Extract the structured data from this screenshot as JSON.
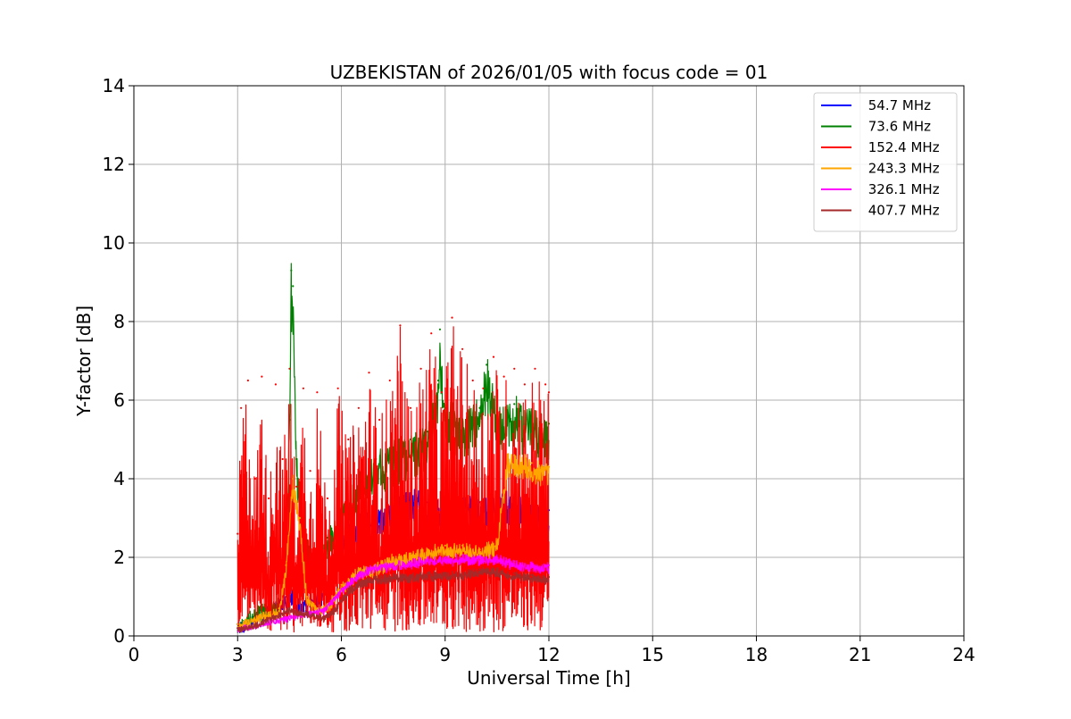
{
  "chart_data": {
    "type": "line",
    "title": "UZBEKISTAN of 2026/01/05 with focus code = 01",
    "xlabel": "Universal Time [h]",
    "ylabel": "Y-factor [dB]",
    "xlim": [
      0,
      24
    ],
    "ylim": [
      0,
      14
    ],
    "xticks": [
      0,
      3,
      6,
      9,
      12,
      15,
      18,
      21,
      24
    ],
    "yticks": [
      0,
      2,
      4,
      6,
      8,
      10,
      12,
      14
    ],
    "grid": true,
    "legend_position": "top-right",
    "series": [
      {
        "name": " 54.7 MHz",
        "color": "#0000ff",
        "x": [
          3.0,
          3.3,
          3.6,
          3.9,
          4.2,
          4.4,
          4.6,
          4.8,
          5.0,
          5.5,
          6.0,
          6.5,
          7.0,
          7.5,
          8.0,
          8.5,
          9.0,
          9.5,
          10.0,
          10.5,
          11.0,
          11.5,
          12.0
        ],
        "values": [
          0.3,
          0.4,
          0.6,
          0.7,
          0.9,
          1.0,
          1.1,
          0.8,
          0.9,
          1.2,
          2.6,
          3.0,
          3.2,
          3.3,
          3.6,
          3.4,
          3.3,
          3.5,
          3.4,
          3.6,
          3.5,
          3.4,
          3.2
        ]
      },
      {
        "name": " 73.6 MHz",
        "color": "#008000",
        "x": [
          3.0,
          3.3,
          3.6,
          3.9,
          4.2,
          4.4,
          4.5,
          4.55,
          4.6,
          4.7,
          4.9,
          5.2,
          5.6,
          6.0,
          6.5,
          7.0,
          7.5,
          8.0,
          8.5,
          8.8,
          8.85,
          9.0,
          9.5,
          10.0,
          10.2,
          10.5,
          11.0,
          11.5,
          12.0
        ],
        "values": [
          0.3,
          0.5,
          0.7,
          0.8,
          0.9,
          2.0,
          5.5,
          9.3,
          8.9,
          4.5,
          2.5,
          2.0,
          2.5,
          3.2,
          4.0,
          4.5,
          4.8,
          5.0,
          5.2,
          6.5,
          7.8,
          5.8,
          5.5,
          5.8,
          6.9,
          5.7,
          5.9,
          5.6,
          5.4
        ]
      },
      {
        "name": " 152.4 MHz",
        "color": "#ff0000",
        "x": [
          3.0,
          3.1,
          3.3,
          3.5,
          3.7,
          3.9,
          4.1,
          4.3,
          4.5,
          4.7,
          4.9,
          5.1,
          5.3,
          5.6,
          5.9,
          6.2,
          6.5,
          6.8,
          7.1,
          7.4,
          7.7,
          8.0,
          8.3,
          8.6,
          8.9,
          9.2,
          9.5,
          9.8,
          10.1,
          10.4,
          10.7,
          11.0,
          11.3,
          11.6,
          11.9,
          12.0
        ],
        "values": [
          2.6,
          5.8,
          6.5,
          4.0,
          6.6,
          3.5,
          6.4,
          4.5,
          6.8,
          3.8,
          6.3,
          4.2,
          6.2,
          3.5,
          6.3,
          5.0,
          5.8,
          6.7,
          5.5,
          6.5,
          7.9,
          5.8,
          6.8,
          7.7,
          6.2,
          8.1,
          7.3,
          6.5,
          6.3,
          7.1,
          6.6,
          6.8,
          6.4,
          6.8,
          6.4,
          6.2
        ]
      },
      {
        "name": " 243.3 MHz",
        "color": "#ffa500",
        "x": [
          3.0,
          3.3,
          3.6,
          3.9,
          4.2,
          4.4,
          4.6,
          4.8,
          5.0,
          5.3,
          5.6,
          6.0,
          6.5,
          7.0,
          7.5,
          8.0,
          8.5,
          9.0,
          9.5,
          10.0,
          10.5,
          10.8,
          11.0,
          11.5,
          12.0
        ],
        "values": [
          0.3,
          0.4,
          0.5,
          0.6,
          0.7,
          1.8,
          4.0,
          3.0,
          1.0,
          0.7,
          0.8,
          1.3,
          1.7,
          1.8,
          2.0,
          2.1,
          2.2,
          2.3,
          2.3,
          2.2,
          2.4,
          4.5,
          4.6,
          4.4,
          4.3
        ]
      },
      {
        "name": " 326.1 MHz",
        "color": "#ff00ff",
        "x": [
          3.0,
          3.5,
          4.0,
          4.5,
          5.0,
          5.5,
          6.0,
          6.5,
          7.0,
          7.5,
          8.0,
          8.5,
          9.0,
          9.5,
          10.0,
          10.5,
          11.0,
          11.5,
          12.0
        ],
        "values": [
          0.2,
          0.3,
          0.4,
          0.5,
          0.6,
          0.7,
          1.2,
          1.6,
          1.8,
          1.85,
          1.9,
          2.0,
          2.0,
          2.05,
          2.0,
          2.0,
          1.9,
          1.85,
          1.8
        ]
      },
      {
        "name": " 407.7 MHz",
        "color": "#a52a2a",
        "x": [
          3.0,
          3.5,
          4.0,
          4.5,
          5.0,
          5.5,
          5.8,
          6.2,
          6.5,
          7.0,
          7.5,
          8.0,
          8.5,
          9.0,
          9.5,
          10.0,
          10.5,
          11.0,
          11.5,
          12.0
        ],
        "values": [
          0.2,
          0.3,
          0.5,
          0.7,
          0.6,
          0.5,
          0.7,
          1.2,
          1.4,
          1.5,
          1.55,
          1.55,
          1.6,
          1.6,
          1.6,
          1.7,
          1.7,
          1.6,
          1.55,
          1.5
        ]
      }
    ]
  }
}
